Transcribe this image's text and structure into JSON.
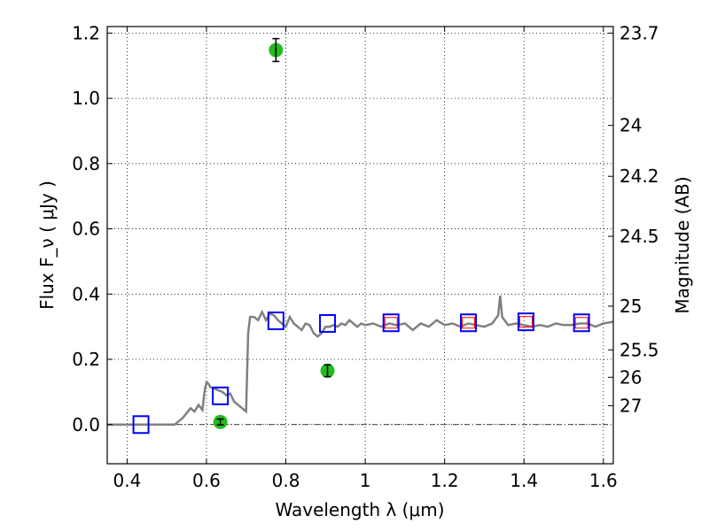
{
  "chart_data": {
    "type": "scatter",
    "xlabel": "Wavelength  λ (μm)",
    "ylabel": "Flux  F_ν  ( μJy )",
    "ylabel_right": "Magnitude (AB)",
    "xlim": [
      0.35,
      1.625
    ],
    "ylim": [
      -0.12,
      1.22
    ],
    "grid": true,
    "x_ticks": [
      0.4,
      0.6,
      0.8,
      1.0,
      1.2,
      1.4,
      1.6
    ],
    "x_tick_labels": [
      "0.4",
      "0.6",
      "0.8",
      "1",
      "1.2",
      "1.4",
      "1.6"
    ],
    "y_ticks": [
      0.0,
      0.2,
      0.4,
      0.6,
      0.8,
      1.0,
      1.2
    ],
    "y_tick_labels": [
      "0.0",
      "0.2",
      "0.4",
      "0.6",
      "0.8",
      "1.0",
      "1.2"
    ],
    "right_ticks": [
      {
        "flux": 1.2,
        "label": "23.7"
      },
      {
        "flux": 0.917,
        "label": "24"
      },
      {
        "flux": 0.761,
        "label": "24.2"
      },
      {
        "flux": 0.577,
        "label": "24.5"
      },
      {
        "flux": 0.363,
        "label": "25"
      },
      {
        "flux": 0.229,
        "label": "25.5"
      },
      {
        "flux": 0.145,
        "label": "26"
      },
      {
        "flux": 0.058,
        "label": "27"
      }
    ],
    "series": [
      {
        "kind": "line",
        "color": "#808080",
        "x": [
          0.35,
          0.52,
          0.54,
          0.56,
          0.57,
          0.58,
          0.59,
          0.595,
          0.6,
          0.605,
          0.61,
          0.62,
          0.63,
          0.64,
          0.65,
          0.66,
          0.67,
          0.68,
          0.69,
          0.7,
          0.705,
          0.71,
          0.72,
          0.73,
          0.74,
          0.75,
          0.76,
          0.77,
          0.78,
          0.79,
          0.8,
          0.81,
          0.82,
          0.83,
          0.84,
          0.85,
          0.86,
          0.87,
          0.88,
          0.89,
          0.9,
          0.91,
          0.92,
          0.93,
          0.94,
          0.95,
          0.96,
          0.97,
          0.98,
          0.99,
          1.0,
          1.02,
          1.04,
          1.06,
          1.08,
          1.1,
          1.12,
          1.14,
          1.16,
          1.18,
          1.2,
          1.22,
          1.24,
          1.26,
          1.28,
          1.3,
          1.32,
          1.335,
          1.34,
          1.345,
          1.36,
          1.38,
          1.4,
          1.42,
          1.44,
          1.46,
          1.48,
          1.5,
          1.52,
          1.54,
          1.56,
          1.58,
          1.6,
          1.625
        ],
        "y": [
          0.0,
          0.0,
          0.02,
          0.05,
          0.04,
          0.06,
          0.045,
          0.1,
          0.13,
          0.125,
          0.115,
          0.11,
          0.105,
          0.1,
          0.09,
          0.095,
          0.07,
          0.06,
          0.05,
          0.04,
          0.28,
          0.33,
          0.33,
          0.32,
          0.345,
          0.32,
          0.34,
          0.335,
          0.32,
          0.31,
          0.3,
          0.33,
          0.31,
          0.3,
          0.29,
          0.31,
          0.305,
          0.28,
          0.27,
          0.28,
          0.3,
          0.3,
          0.305,
          0.3,
          0.31,
          0.305,
          0.32,
          0.31,
          0.3,
          0.31,
          0.305,
          0.31,
          0.3,
          0.31,
          0.305,
          0.31,
          0.29,
          0.31,
          0.3,
          0.32,
          0.305,
          0.31,
          0.3,
          0.31,
          0.305,
          0.3,
          0.31,
          0.335,
          0.395,
          0.33,
          0.305,
          0.31,
          0.305,
          0.3,
          0.305,
          0.3,
          0.31,
          0.305,
          0.305,
          0.31,
          0.31,
          0.3,
          0.31,
          0.315
        ]
      },
      {
        "kind": "open-square",
        "color": "#0000ff",
        "x": [
          0.435,
          0.635,
          0.775,
          0.905,
          1.065,
          1.26,
          1.405,
          1.545
        ],
        "y": [
          0.0,
          0.088,
          0.318,
          0.31,
          0.312,
          0.312,
          0.315,
          0.312
        ]
      },
      {
        "kind": "small-open-square",
        "color": "#ff0000",
        "x": [
          1.065,
          1.26,
          1.405,
          1.545
        ],
        "y": [
          0.312,
          0.312,
          0.315,
          0.312
        ]
      },
      {
        "kind": "filled-circle-errorbar",
        "color": "#22bb22",
        "x": [
          0.635,
          0.775,
          0.905
        ],
        "y": [
          0.008,
          1.148,
          0.165
        ],
        "yerr": [
          0.009,
          0.035,
          0.018
        ]
      }
    ]
  }
}
